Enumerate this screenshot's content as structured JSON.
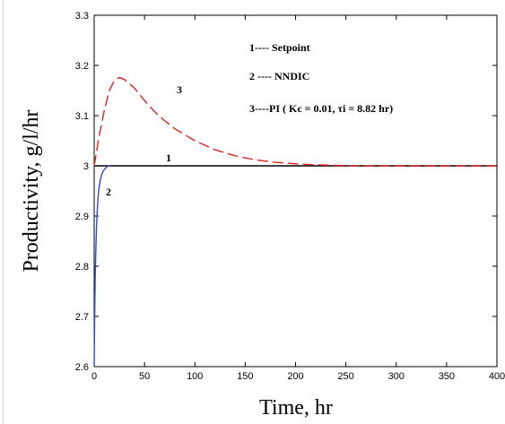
{
  "chart_data": {
    "type": "line",
    "title": "",
    "xlabel": "Time, hr",
    "ylabel": "Productivity, g/l/hr",
    "xlim": [
      0,
      400
    ],
    "ylim": [
      2.6,
      3.3
    ],
    "xticks": [
      0,
      50,
      100,
      150,
      200,
      250,
      300,
      350,
      400
    ],
    "yticks": [
      2.6,
      2.7,
      2.8,
      2.9,
      3.0,
      3.1,
      3.2,
      3.3
    ],
    "xtick_labels": [
      "0",
      "50",
      "100",
      "150",
      "200",
      "250",
      "300",
      "350",
      "400"
    ],
    "ytick_labels": [
      "2.6",
      "2.7",
      "2.8",
      "2.9",
      "3",
      "3.1",
      "3.2",
      "3.3"
    ],
    "grid": false,
    "legend": {
      "placement": "top-right",
      "entries": [
        "1----  Setpoint",
        "2 ---- NNDIC",
        "3----PI ( Kc  = 0.01, τi = 8.82 hr)"
      ]
    },
    "series": [
      {
        "tag": "1",
        "color": "#000000",
        "style": "solid",
        "x": [
          0,
          400
        ],
        "y": [
          3.0,
          3.0
        ]
      },
      {
        "tag": "2",
        "color": "#3344dd",
        "style": "solid",
        "x": [
          0,
          0.5,
          1,
          2,
          3,
          4,
          5,
          7,
          9,
          11,
          13,
          16
        ],
        "y": [
          2.6,
          2.7,
          2.78,
          2.86,
          2.91,
          2.94,
          2.96,
          2.98,
          2.99,
          2.995,
          2.999,
          3.0
        ]
      },
      {
        "tag": "3",
        "color": "#dd2222",
        "style": "dashed",
        "x": [
          0,
          5,
          10,
          15,
          20,
          25,
          30,
          40,
          50,
          60,
          70,
          80,
          100,
          120,
          140,
          160,
          180,
          200,
          220,
          240,
          260,
          280,
          300,
          350,
          400
        ],
        "y": [
          3.0,
          3.06,
          3.11,
          3.15,
          3.17,
          3.176,
          3.172,
          3.155,
          3.13,
          3.108,
          3.09,
          3.074,
          3.05,
          3.032,
          3.02,
          3.012,
          3.007,
          3.004,
          3.002,
          3.001,
          3.0,
          3.0,
          3.0,
          3.0,
          3.0
        ]
      }
    ]
  }
}
